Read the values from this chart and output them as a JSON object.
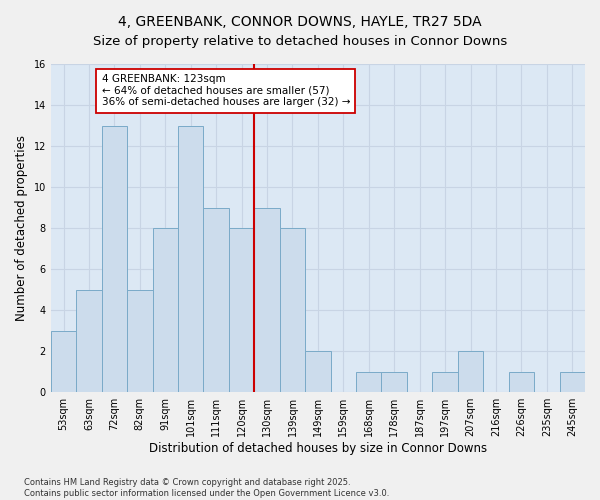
{
  "title": "4, GREENBANK, CONNOR DOWNS, HAYLE, TR27 5DA",
  "subtitle": "Size of property relative to detached houses in Connor Downs",
  "xlabel": "Distribution of detached houses by size in Connor Downs",
  "ylabel": "Number of detached properties",
  "categories": [
    "53sqm",
    "63sqm",
    "72sqm",
    "82sqm",
    "91sqm",
    "101sqm",
    "111sqm",
    "120sqm",
    "130sqm",
    "139sqm",
    "149sqm",
    "159sqm",
    "168sqm",
    "178sqm",
    "187sqm",
    "197sqm",
    "207sqm",
    "216sqm",
    "226sqm",
    "235sqm",
    "245sqm"
  ],
  "values": [
    3,
    5,
    13,
    5,
    8,
    13,
    9,
    8,
    9,
    8,
    2,
    0,
    1,
    1,
    0,
    1,
    2,
    0,
    1,
    0,
    1
  ],
  "bar_color": "#ccdcec",
  "bar_edge_color": "#7aaac8",
  "vline_x": 7.5,
  "vline_color": "#cc0000",
  "annotation_text": "4 GREENBANK: 123sqm\n← 64% of detached houses are smaller (57)\n36% of semi-detached houses are larger (32) →",
  "annotation_box_color": "#ffffff",
  "annotation_box_edge_color": "#cc0000",
  "ylim": [
    0,
    16
  ],
  "yticks": [
    0,
    2,
    4,
    6,
    8,
    10,
    12,
    14,
    16
  ],
  "grid_color": "#c8d4e4",
  "bg_color": "#dce8f4",
  "fig_color": "#f0f0f0",
  "footer": "Contains HM Land Registry data © Crown copyright and database right 2025.\nContains public sector information licensed under the Open Government Licence v3.0.",
  "title_fontsize": 10,
  "xlabel_fontsize": 8.5,
  "ylabel_fontsize": 8.5,
  "tick_fontsize": 7,
  "annotation_fontsize": 7.5,
  "footer_fontsize": 6
}
